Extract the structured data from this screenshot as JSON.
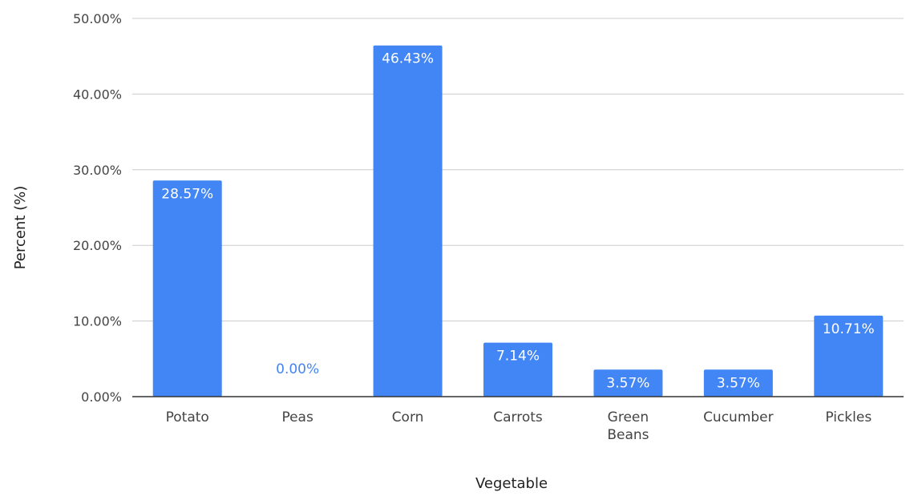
{
  "chart_data": {
    "type": "bar",
    "title": "",
    "xlabel": "Vegetable",
    "ylabel": "Percent (%)",
    "categories": [
      "Potato",
      "Peas",
      "Corn",
      "Carrots",
      "Green Beans",
      "Cucumber",
      "Pickles"
    ],
    "values": [
      28.57,
      0,
      46.43,
      7.14,
      3.57,
      3.57,
      10.71
    ],
    "data_labels": [
      "28.57%",
      "0.00%",
      "46.43%",
      "7.14%",
      "3.57%",
      "3.57%",
      "10.71%"
    ],
    "ylim": [
      0,
      50
    ],
    "yticks": [
      0,
      10,
      20,
      30,
      40,
      50
    ],
    "ytick_labels": [
      "0.00%",
      "10.00%",
      "20.00%",
      "30.00%",
      "40.00%",
      "50.00%"
    ],
    "grid": true,
    "legend": "none",
    "colors": {
      "bar": "#4285f4",
      "label_inside": "#ffffff",
      "label_outside": "#4285f4",
      "grid": "#cccccc",
      "baseline": "#333333"
    }
  }
}
